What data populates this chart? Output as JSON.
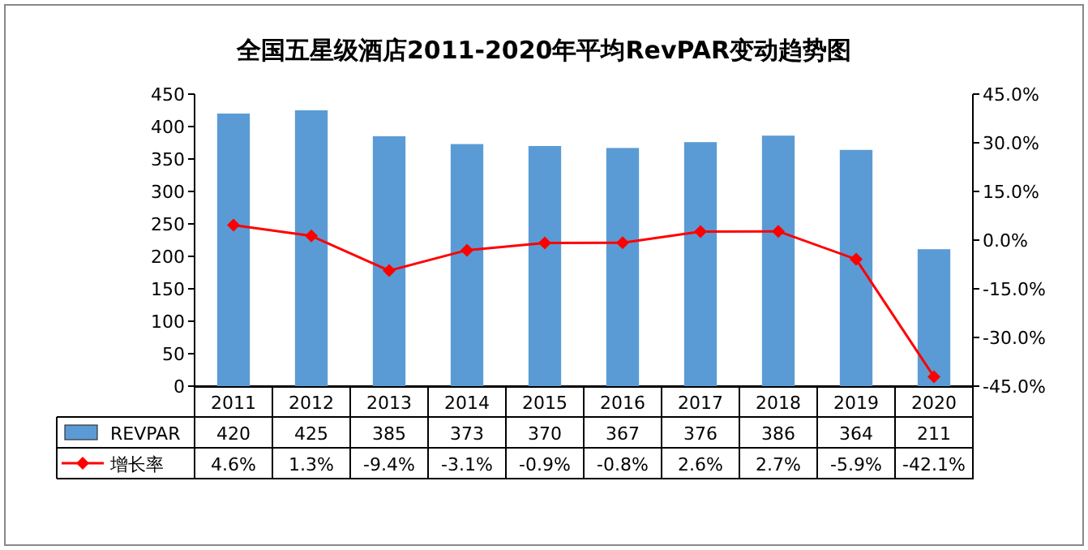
{
  "chart_data": {
    "type": "bar",
    "title": "全国五星级酒店2011-2020年平均RevPAR变动趋势图",
    "categories": [
      "2011",
      "2012",
      "2013",
      "2014",
      "2015",
      "2016",
      "2017",
      "2018",
      "2019",
      "2020"
    ],
    "series": [
      {
        "name": "REVPAR",
        "color": "#5b9bd5",
        "values": [
          420,
          425,
          385,
          373,
          370,
          367,
          376,
          386,
          364,
          211
        ],
        "value_labels": [
          "420",
          "425",
          "385",
          "373",
          "370",
          "367",
          "376",
          "386",
          "364",
          "211"
        ]
      },
      {
        "name": "增长率",
        "type": "line",
        "axis": "y2",
        "color": "#ff0000",
        "marker": "diamond",
        "values": [
          4.6,
          1.3,
          -9.4,
          -3.1,
          -0.9,
          -0.8,
          2.6,
          2.7,
          -5.9,
          -42.1
        ],
        "value_labels": [
          "4.6%",
          "1.3%",
          "-9.4%",
          "-3.1%",
          "-0.9%",
          "-0.8%",
          "2.6%",
          "2.7%",
          "-5.9%",
          "-42.1%"
        ]
      }
    ],
    "ylim": [
      0,
      450
    ],
    "yticks": [
      0,
      50,
      100,
      150,
      200,
      250,
      300,
      350,
      400,
      450
    ],
    "y2lim": [
      -45,
      45
    ],
    "y2ticks": [
      {
        "value": -45,
        "label": "-45.0%"
      },
      {
        "value": -30,
        "label": "-30.0%"
      },
      {
        "value": -15,
        "label": "-15.0%"
      },
      {
        "value": 0,
        "label": "0.0%"
      },
      {
        "value": 15,
        "label": "15.0%"
      },
      {
        "value": 30,
        "label": "30.0%"
      },
      {
        "value": 45,
        "label": "45.0%"
      }
    ],
    "legend": "bottom",
    "grid": false
  }
}
